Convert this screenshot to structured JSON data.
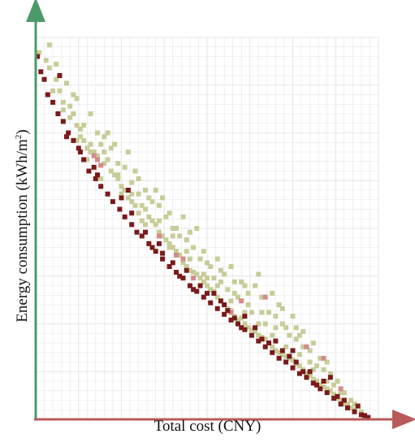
{
  "chart_data": {
    "type": "scatter",
    "title": "",
    "xlabel": "Total cost (CNY)",
    "ylabel": "Energy consumption (kWh/m",
    "ylabel_sup": "2",
    "ylabel_tail": ")",
    "xlim": [
      0,
      100
    ],
    "ylim": [
      0,
      100
    ],
    "grid": true,
    "tick_labels": "none",
    "legend": "none",
    "colors": {
      "x_axis": "#b85a5a",
      "y_axis": "#4a9a6a",
      "grid": "#e6e6e6"
    },
    "series": [
      {
        "color": "#7a1a1a",
        "points": [
          [
            0.5,
            95
          ],
          [
            1.5,
            91
          ],
          [
            2.5,
            89
          ],
          [
            3.5,
            85
          ],
          [
            5,
            83
          ],
          [
            6.5,
            80
          ],
          [
            8,
            78
          ],
          [
            9.5,
            75
          ],
          [
            11,
            73
          ],
          [
            12.5,
            71
          ],
          [
            14,
            68
          ],
          [
            15.5,
            65
          ],
          [
            17.5,
            63
          ],
          [
            19,
            61
          ],
          [
            21,
            59
          ],
          [
            22.5,
            57
          ],
          [
            24.5,
            55
          ],
          [
            26,
            53
          ],
          [
            28,
            51
          ],
          [
            29.5,
            49
          ],
          [
            31,
            48
          ],
          [
            33,
            46
          ],
          [
            35,
            44
          ],
          [
            37,
            42
          ],
          [
            39,
            40
          ],
          [
            41,
            38.5
          ],
          [
            43,
            37
          ],
          [
            45,
            35
          ],
          [
            47,
            33.5
          ],
          [
            49,
            32
          ],
          [
            51,
            30.5
          ],
          [
            53,
            29
          ],
          [
            55,
            27.5
          ],
          [
            57,
            26
          ],
          [
            59,
            25
          ],
          [
            61,
            23.5
          ],
          [
            63,
            22
          ],
          [
            65,
            20.5
          ],
          [
            67,
            19
          ],
          [
            69,
            17.5
          ],
          [
            71,
            16
          ],
          [
            73,
            15
          ],
          [
            75,
            13.5
          ],
          [
            77,
            12
          ],
          [
            79,
            11
          ],
          [
            81,
            9.5
          ],
          [
            83,
            8
          ],
          [
            85,
            7
          ],
          [
            87,
            5.5
          ],
          [
            89,
            4
          ],
          [
            91,
            3
          ],
          [
            93,
            2
          ],
          [
            95,
            1.2
          ],
          [
            97,
            0.5
          ],
          [
            9,
            74
          ],
          [
            13,
            70
          ],
          [
            18,
            64
          ],
          [
            25,
            58
          ],
          [
            27,
            60
          ],
          [
            32,
            49
          ],
          [
            36,
            46
          ],
          [
            40,
            41
          ],
          [
            44,
            39
          ],
          [
            48,
            35
          ],
          [
            52,
            33
          ],
          [
            56,
            28.5
          ],
          [
            58,
            26.5
          ],
          [
            64,
            24
          ],
          [
            68,
            20
          ],
          [
            72,
            18
          ],
          [
            76,
            15
          ],
          [
            80,
            12.5
          ],
          [
            84,
            10
          ],
          [
            86,
            11
          ],
          [
            90,
            5
          ],
          [
            7,
            90
          ],
          [
            17,
            66
          ],
          [
            28,
            54
          ],
          [
            34,
            45
          ],
          [
            42,
            37.5
          ],
          [
            46,
            34
          ],
          [
            50,
            33
          ],
          [
            54,
            31
          ],
          [
            60,
            24
          ],
          [
            66,
            21
          ],
          [
            70,
            20.5
          ],
          [
            74,
            16.5
          ],
          [
            78,
            12.5
          ],
          [
            82,
            9
          ],
          [
            88,
            6
          ],
          [
            94,
            3.5
          ],
          [
            96,
            1
          ],
          [
            37,
            43.5
          ],
          [
            61,
            27
          ],
          [
            55,
            30
          ],
          [
            75,
            18
          ]
        ]
      },
      {
        "color": "#d48a8a",
        "points": [
          [
            7,
            90
          ],
          [
            17,
            69
          ],
          [
            18,
            68
          ],
          [
            19,
            66.5
          ],
          [
            36,
            48
          ],
          [
            41,
            43
          ],
          [
            43,
            42
          ],
          [
            46,
            37
          ],
          [
            60,
            31
          ],
          [
            67,
            32
          ],
          [
            57,
            28
          ],
          [
            79,
            19
          ],
          [
            84,
            16
          ],
          [
            89,
            8
          ]
        ]
      },
      {
        "color": "#c8cc98",
        "points": [
          [
            1,
            96
          ],
          [
            3,
            94
          ],
          [
            4,
            92
          ],
          [
            6,
            89
          ],
          [
            7,
            86
          ],
          [
            8,
            83
          ],
          [
            10,
            82
          ],
          [
            11,
            80
          ],
          [
            12,
            77
          ],
          [
            13,
            76
          ],
          [
            14,
            73
          ],
          [
            15,
            71
          ],
          [
            16,
            72
          ],
          [
            17,
            70
          ],
          [
            18,
            69
          ],
          [
            19,
            72
          ],
          [
            20,
            70
          ],
          [
            21,
            68
          ],
          [
            22,
            65
          ],
          [
            23,
            64
          ],
          [
            24,
            63
          ],
          [
            25,
            61
          ],
          [
            26,
            60
          ],
          [
            27,
            58
          ],
          [
            28,
            57
          ],
          [
            29,
            56
          ],
          [
            30,
            54
          ],
          [
            31,
            56
          ],
          [
            32,
            55
          ],
          [
            33,
            53
          ],
          [
            34,
            52
          ],
          [
            35,
            51
          ],
          [
            36,
            49
          ],
          [
            37,
            48
          ],
          [
            38,
            47
          ],
          [
            39,
            46
          ],
          [
            40,
            45
          ],
          [
            41,
            44
          ],
          [
            42,
            43
          ],
          [
            43,
            41
          ],
          [
            44,
            40
          ],
          [
            45,
            39
          ],
          [
            46,
            38.5
          ],
          [
            47,
            38
          ],
          [
            48,
            37
          ],
          [
            49,
            36
          ],
          [
            50,
            35
          ],
          [
            51,
            34
          ],
          [
            52,
            33.5
          ],
          [
            53,
            32
          ],
          [
            54,
            31
          ],
          [
            55,
            30
          ],
          [
            56,
            29
          ],
          [
            57,
            28.5
          ],
          [
            58,
            27
          ],
          [
            59,
            26
          ],
          [
            60,
            26.5
          ],
          [
            61,
            25
          ],
          [
            62,
            24
          ],
          [
            63,
            23.5
          ],
          [
            64,
            23
          ],
          [
            65,
            22
          ],
          [
            66,
            21.5
          ],
          [
            67,
            21
          ],
          [
            68,
            20
          ],
          [
            69,
            19
          ],
          [
            70,
            18
          ],
          [
            71,
            17.5
          ],
          [
            72,
            17
          ],
          [
            73,
            16.5
          ],
          [
            74,
            16
          ],
          [
            75,
            15.5
          ],
          [
            76,
            14.5
          ],
          [
            77,
            14
          ],
          [
            78,
            13
          ],
          [
            79,
            12
          ],
          [
            80,
            11.5
          ],
          [
            81,
            10.5
          ],
          [
            82,
            10
          ],
          [
            83,
            9
          ],
          [
            84,
            8.5
          ],
          [
            85,
            8
          ],
          [
            86,
            7.5
          ],
          [
            87,
            6.5
          ],
          [
            88,
            5.5
          ],
          [
            89,
            5
          ],
          [
            90,
            4
          ],
          [
            91,
            4
          ],
          [
            92,
            3
          ],
          [
            93,
            2.5
          ],
          [
            4,
            98
          ],
          [
            16,
            80
          ],
          [
            14,
            77
          ],
          [
            12,
            84
          ],
          [
            18,
            75
          ],
          [
            24,
            67
          ],
          [
            26,
            66
          ],
          [
            28,
            62
          ],
          [
            30,
            59
          ],
          [
            32,
            60
          ],
          [
            34,
            57
          ],
          [
            36,
            56
          ],
          [
            38,
            53
          ],
          [
            40,
            50
          ],
          [
            42,
            48
          ],
          [
            44,
            47
          ],
          [
            46,
            45
          ],
          [
            48,
            42
          ],
          [
            50,
            41
          ],
          [
            52,
            37
          ],
          [
            54,
            36
          ],
          [
            56,
            34
          ],
          [
            58,
            33
          ],
          [
            60,
            36
          ],
          [
            62,
            30
          ],
          [
            64,
            35
          ],
          [
            66,
            32
          ],
          [
            68,
            28
          ],
          [
            70,
            27
          ],
          [
            72,
            25
          ],
          [
            74,
            22
          ],
          [
            76,
            21
          ],
          [
            78,
            19
          ],
          [
            80,
            18
          ],
          [
            82,
            14
          ],
          [
            84,
            13
          ],
          [
            86,
            12
          ],
          [
            88,
            10
          ],
          [
            90,
            7
          ],
          [
            92,
            5
          ],
          [
            20,
            74
          ],
          [
            22,
            71
          ],
          [
            30,
            63
          ],
          [
            33,
            58
          ],
          [
            39,
            54
          ],
          [
            41,
            50
          ],
          [
            45,
            49
          ],
          [
            51,
            40
          ],
          [
            55,
            38
          ],
          [
            59,
            32
          ],
          [
            63,
            28
          ],
          [
            67,
            25
          ],
          [
            71,
            30
          ],
          [
            73,
            24
          ],
          [
            75,
            27
          ],
          [
            77,
            22
          ],
          [
            81,
            20
          ],
          [
            83,
            16
          ],
          [
            85,
            15
          ],
          [
            87,
            9
          ],
          [
            65,
            38
          ],
          [
            69,
            33
          ],
          [
            61,
            35
          ],
          [
            57,
            40
          ],
          [
            53,
            42
          ],
          [
            49,
            44
          ],
          [
            47,
            50
          ],
          [
            43,
            53
          ],
          [
            37,
            58
          ],
          [
            35,
            60
          ],
          [
            29,
            65
          ],
          [
            27,
            70
          ],
          [
            23,
            72
          ],
          [
            21,
            75
          ],
          [
            9,
            88
          ],
          [
            6,
            93
          ],
          [
            5,
            86
          ],
          [
            8,
            81
          ],
          [
            10,
            79
          ],
          [
            11,
            85
          ],
          [
            13,
            74
          ],
          [
            15,
            68
          ],
          [
            19,
            63
          ],
          [
            25,
            59
          ],
          [
            31,
            52
          ],
          [
            39,
            45
          ],
          [
            45,
            42
          ],
          [
            49,
            38
          ],
          [
            53,
            35
          ],
          [
            57,
            31
          ],
          [
            61,
            28
          ],
          [
            65,
            25
          ],
          [
            69,
            22
          ],
          [
            73,
            19
          ],
          [
            77,
            17
          ],
          [
            81,
            13
          ],
          [
            85,
            10
          ],
          [
            89,
            7
          ],
          [
            93,
            4
          ],
          [
            95,
            2
          ],
          [
            72,
            29
          ],
          [
            66,
            28
          ],
          [
            70,
            24
          ],
          [
            62,
            33
          ],
          [
            58,
            36
          ],
          [
            54,
            39
          ],
          [
            50,
            37
          ],
          [
            44,
            44
          ],
          [
            40,
            48
          ],
          [
            36,
            52
          ],
          [
            32,
            51
          ],
          [
            28,
            59
          ],
          [
            24,
            64
          ],
          [
            20,
            67
          ],
          [
            16,
            70
          ],
          [
            12,
            73
          ],
          [
            8,
            78
          ],
          [
            76,
            24
          ],
          [
            78,
            23
          ],
          [
            80,
            15
          ]
        ]
      }
    ]
  }
}
